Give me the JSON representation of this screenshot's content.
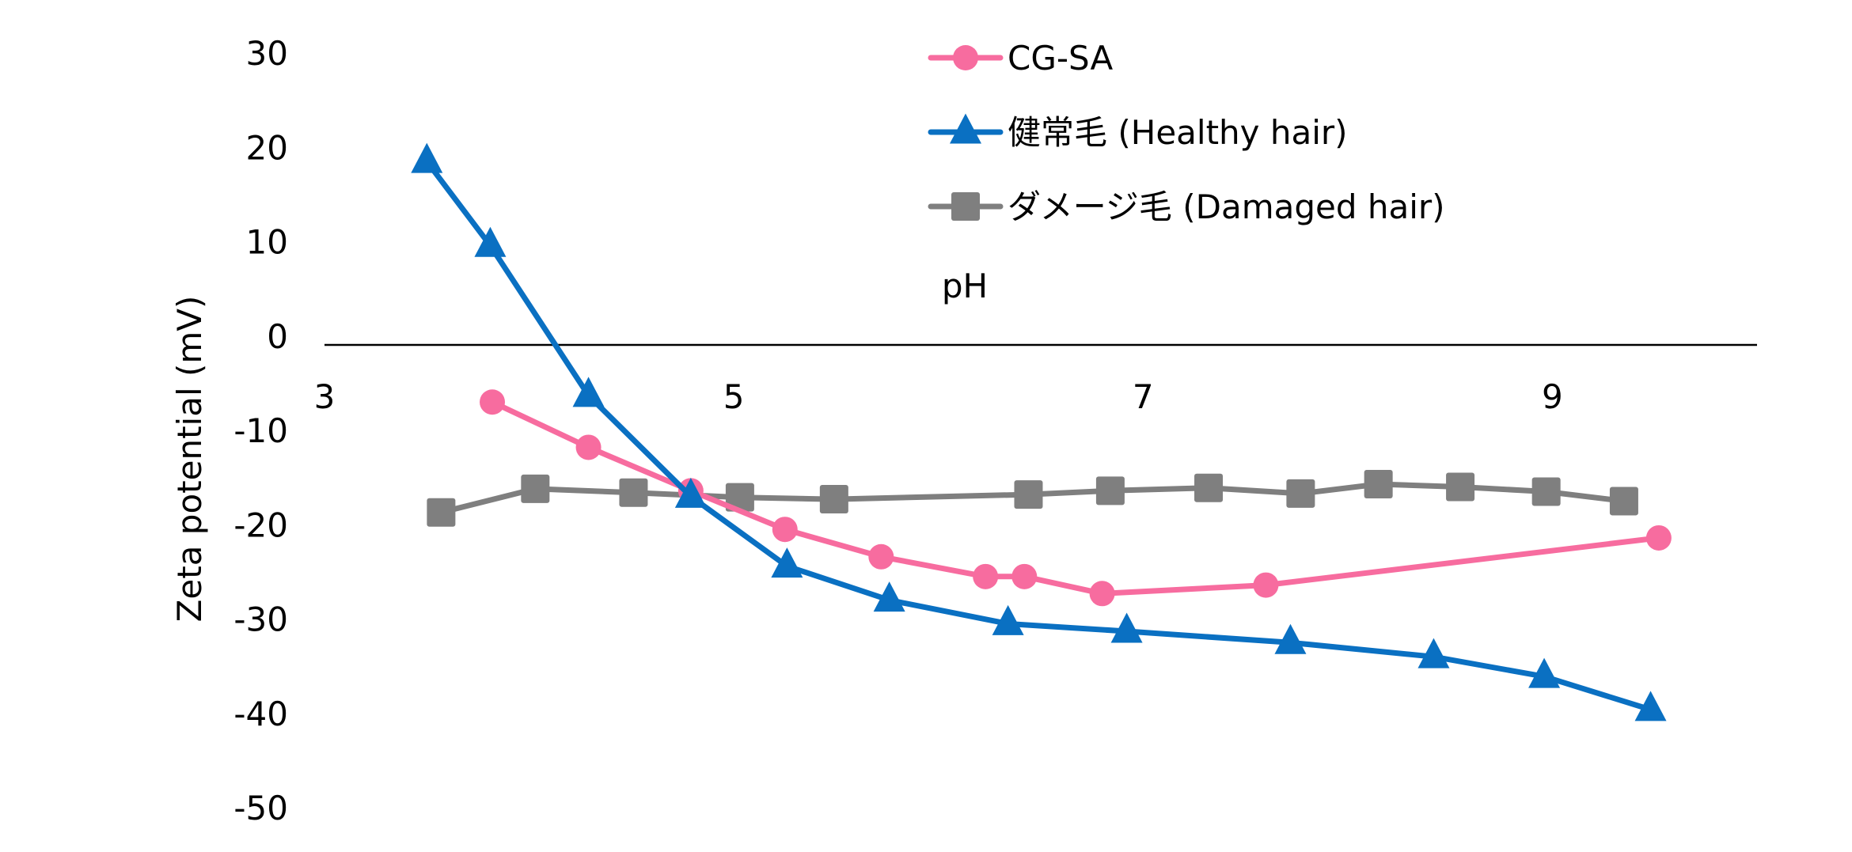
{
  "chart_data": {
    "type": "line",
    "title": "",
    "xlabel": "pH",
    "ylabel": "Zeta potential (mV)",
    "xlim": [
      3,
      10
    ],
    "ylim": [
      -50,
      30
    ],
    "xticks": [
      3,
      5,
      7,
      9
    ],
    "yticks": [
      30,
      20,
      10,
      0,
      -10,
      -20,
      -30,
      -40,
      -50
    ],
    "legend_position": "top-center",
    "series": [
      {
        "name": "CG-SA",
        "color": "#F76C9F",
        "marker": "circle",
        "points": [
          [
            3.82,
            -7.0
          ],
          [
            4.29,
            -11.8
          ],
          [
            4.79,
            -16.4
          ],
          [
            5.25,
            -20.5
          ],
          [
            5.72,
            -23.4
          ],
          [
            6.23,
            -25.5
          ],
          [
            6.42,
            -25.5
          ],
          [
            6.8,
            -27.3
          ],
          [
            7.6,
            -26.4
          ],
          [
            9.52,
            -21.4
          ]
        ]
      },
      {
        "name": "健常毛 (Healthy hair)",
        "color": "#0A70C2",
        "marker": "triangle",
        "points": [
          [
            3.5,
            18.5
          ],
          [
            3.81,
            9.6
          ],
          [
            4.29,
            -6.3
          ],
          [
            4.79,
            -17.0
          ],
          [
            5.26,
            -24.4
          ],
          [
            5.76,
            -28.0
          ],
          [
            6.34,
            -30.5
          ],
          [
            6.92,
            -31.3
          ],
          [
            7.72,
            -32.5
          ],
          [
            8.42,
            -34.0
          ],
          [
            8.96,
            -36.1
          ],
          [
            9.48,
            -39.6
          ]
        ]
      },
      {
        "name": "ダメージ毛 (Damaged hair)",
        "color": "#7F7F7F",
        "marker": "square",
        "points": [
          [
            3.57,
            -18.7
          ],
          [
            4.03,
            -16.2
          ],
          [
            4.51,
            -16.6
          ],
          [
            5.03,
            -17.1
          ],
          [
            5.49,
            -17.3
          ],
          [
            6.44,
            -16.8
          ],
          [
            6.84,
            -16.4
          ],
          [
            7.32,
            -16.1
          ],
          [
            7.77,
            -16.7
          ],
          [
            8.15,
            -15.7
          ],
          [
            8.55,
            -16.0
          ],
          [
            8.97,
            -16.5
          ],
          [
            9.35,
            -17.5
          ]
        ]
      }
    ]
  }
}
